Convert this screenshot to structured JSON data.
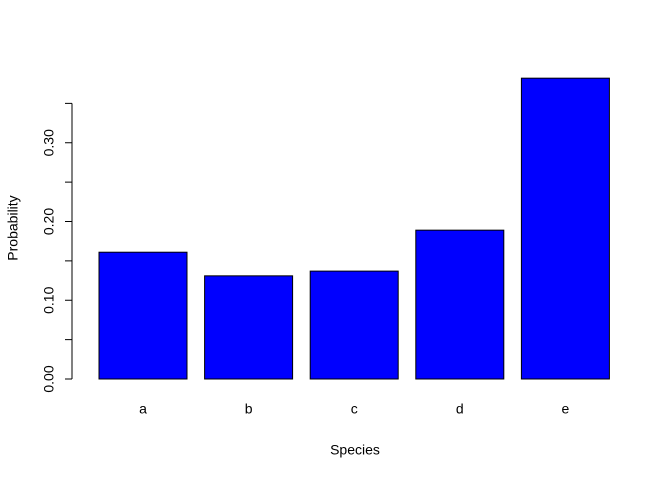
{
  "chart_data": {
    "type": "bar",
    "x_label": "Species",
    "y_label": "Probability",
    "categories": [
      "a",
      "b",
      "c",
      "d",
      "e"
    ],
    "values": [
      0.161,
      0.131,
      0.137,
      0.189,
      0.382
    ],
    "color": "#0000ff",
    "ylim": [
      0,
      0.4
    ],
    "yticks": [
      {
        "value": 0,
        "label": "0.00"
      },
      {
        "value": 0.1,
        "label": "0.10"
      },
      {
        "value": 0.2,
        "label": "0.20"
      },
      {
        "value": 0.3,
        "label": "0.30"
      }
    ],
    "yminorticks": [
      0.05,
      0.15,
      0.25,
      0.35
    ]
  }
}
